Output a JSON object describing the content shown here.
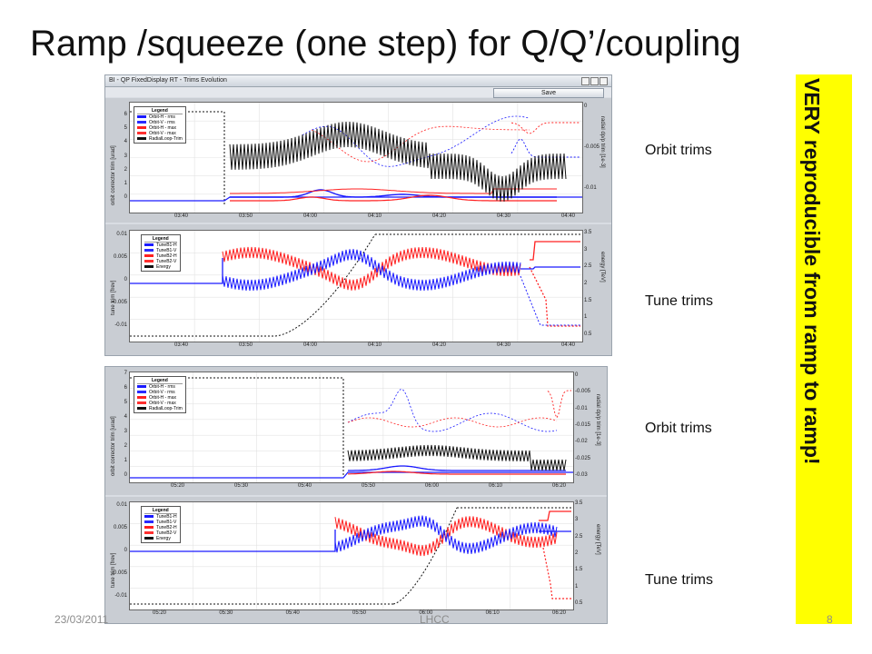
{
  "slide": {
    "title": "Ramp /squeeze (one step) for Q/Q’/coupling",
    "side_labels": [
      "Orbit trims",
      "Tune trims",
      "Orbit trims",
      "Tune trims"
    ],
    "callout": "VERY reproducible from ramp to ramp!",
    "footer_date": "23/03/2011",
    "footer_center": "LHCC",
    "page_number": "8"
  },
  "window": {
    "title": "BI - QP FixedDisplay RT - Trims Evolution",
    "save_label": "Save"
  },
  "orbit_legend": {
    "title": "Legend",
    "items": [
      {
        "label": "Orbit-H - rms",
        "color": "#1a1aff"
      },
      {
        "label": "Orbit-V - rms",
        "color": "#2a2aff"
      },
      {
        "label": "Orbit-H - max",
        "color": "#ff2020"
      },
      {
        "label": "Orbit-V - max",
        "color": "#ff3030"
      },
      {
        "label": "RadialLoop-Trim",
        "color": "#111111"
      }
    ]
  },
  "tune_legend": {
    "title": "Legend",
    "items": [
      {
        "label": "TuneB1-H",
        "color": "#1a1aff"
      },
      {
        "label": "TuneB1-V",
        "color": "#2a2aff"
      },
      {
        "label": "TuneB2-H",
        "color": "#ff2020"
      },
      {
        "label": "TuneB2-V",
        "color": "#ff3030"
      },
      {
        "label": "Energy",
        "color": "#111111"
      }
    ]
  },
  "axes": {
    "orbit_ylabel": "orbit corrector trim [urad]",
    "orbit_y2label": "radial dp/p trim [1e-3]",
    "tune_ylabel": "tune trim [frev]",
    "tune_y2label": "energy [TeV]",
    "orbit1_yticks": [
      "6",
      "5",
      "4",
      "3",
      "2",
      "1",
      "0"
    ],
    "orbit1_y2ticks": [
      "0",
      "-0.005",
      "-0.01"
    ],
    "tune1_yticks": [
      "0.01",
      "0.005",
      "0",
      "-0.005",
      "-0.01"
    ],
    "tune1_y2ticks": [
      "3.5",
      "3",
      "2.5",
      "2",
      "1.5",
      "1",
      "0.5"
    ],
    "time1_ticks": [
      "03:40",
      "03:50",
      "04:00",
      "04:10",
      "04:20",
      "04:30",
      "04:40"
    ],
    "orbit2_yticks": [
      "7",
      "6",
      "5",
      "4",
      "3",
      "2",
      "1",
      "0"
    ],
    "orbit2_y2ticks": [
      "0",
      "-0.005",
      "-0.01",
      "-0.015",
      "-0.02",
      "-0.025",
      "-0.03"
    ],
    "tune2_yticks": [
      "0.01",
      "0.005",
      "0",
      "-0.005",
      "-0.01"
    ],
    "tune2_y2ticks": [
      "3.5",
      "3",
      "2.5",
      "2",
      "1.5",
      "1",
      "0.5"
    ],
    "time2_orbit_ticks": [
      "05:20",
      "05:30",
      "05:40",
      "05:50",
      "06:00",
      "06:10",
      "06:20"
    ],
    "time2_tune_ticks": [
      "05:20",
      "05:30",
      "05:40",
      "05:50",
      "06:00",
      "06:10",
      "06:20"
    ]
  },
  "colors": {
    "b1": "#1a1aff",
    "b2": "#ff2020",
    "radial": "#111111",
    "callout_bg": "#ffff00"
  }
}
